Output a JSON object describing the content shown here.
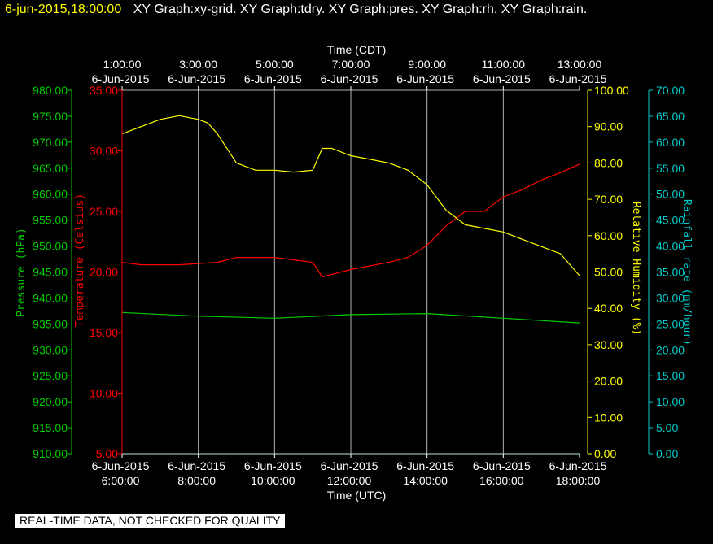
{
  "header": {
    "timestamp": "6-jun-2015,18:00:00",
    "titles": "XY Graph:xy-grid.  XY Graph:tdry.  XY Graph:pres.  XY Graph:rh.  XY Graph:rain."
  },
  "disclaimer": "REAL-TIME DATA, NOT CHECKED FOR QUALITY",
  "colors": {
    "background": "#000000",
    "grid": "#b4b4b4",
    "pressure": "#00cc00",
    "temperature": "#ff0000",
    "humidity": "#ffff00",
    "rain": "#00cccc",
    "axis_text": "#ffffff"
  },
  "chart_data": {
    "type": "line",
    "grid": true,
    "x_top": {
      "label": "Time (CDT)",
      "ticks": [
        {
          "time": "1:00:00",
          "date": "6-Jun-2015"
        },
        {
          "time": "3:00:00",
          "date": "6-Jun-2015"
        },
        {
          "time": "5:00:00",
          "date": "6-Jun-2015"
        },
        {
          "time": "7:00:00",
          "date": "6-Jun-2015"
        },
        {
          "time": "9:00:00",
          "date": "6-Jun-2015"
        },
        {
          "time": "11:00:00",
          "date": "6-Jun-2015"
        },
        {
          "time": "13:00:00",
          "date": "6-Jun-2015"
        }
      ]
    },
    "x_bottom": {
      "label": "Time (UTC)",
      "range": [
        "6:00:00",
        "18:00:00"
      ],
      "ticks": [
        {
          "date": "6-Jun-2015",
          "time": "6:00:00"
        },
        {
          "date": "6-Jun-2015",
          "time": "8:00:00"
        },
        {
          "date": "6-Jun-2015",
          "time": "10:00:00"
        },
        {
          "date": "6-Jun-2015",
          "time": "12:00:00"
        },
        {
          "date": "6-Jun-2015",
          "time": "14:00:00"
        },
        {
          "date": "6-Jun-2015",
          "time": "16:00:00"
        },
        {
          "date": "6-Jun-2015",
          "time": "18:00:00"
        }
      ]
    },
    "axes": {
      "pressure": {
        "label": "Pressure (hPa)",
        "ylim": [
          910,
          980
        ],
        "color": "#00cc00",
        "ticks": [
          "910.00",
          "915.00",
          "920.00",
          "925.00",
          "930.00",
          "935.00",
          "940.00",
          "945.00",
          "950.00",
          "955.00",
          "960.00",
          "965.00",
          "970.00",
          "975.00",
          "980.00"
        ]
      },
      "temperature": {
        "label": "Temperature (Celsius)",
        "ylim": [
          5,
          35
        ],
        "color": "#ff0000",
        "ticks": [
          "5.00",
          "10.00",
          "15.00",
          "20.00",
          "25.00",
          "30.00",
          "35.00"
        ]
      },
      "humidity": {
        "label": "Relative Humidity (%)",
        "ylim": [
          0,
          100
        ],
        "color": "#ffff00",
        "ticks": [
          "0.00",
          "10.00",
          "20.00",
          "30.00",
          "40.00",
          "50.00",
          "60.00",
          "70.00",
          "80.00",
          "90.00",
          "100.00"
        ]
      },
      "rain": {
        "label": "Rainfall rate (mm/hour)",
        "ylim": [
          0,
          70
        ],
        "color": "#00cccc",
        "ticks": [
          "0.00",
          "5.00",
          "10.00",
          "15.00",
          "20.00",
          "25.00",
          "30.00",
          "35.00",
          "40.00",
          "45.00",
          "50.00",
          "55.00",
          "60.00",
          "65.00",
          "70.00"
        ]
      }
    },
    "series": [
      {
        "name": "Temperature (Celsius)",
        "axis": "temperature",
        "color": "#ff0000",
        "x": [
          "6:00",
          "6:30",
          "7:00",
          "7:30",
          "8:00",
          "8:30",
          "9:00",
          "9:30",
          "10:00",
          "10:30",
          "11:00",
          "11:15",
          "11:30",
          "12:00",
          "12:30",
          "13:00",
          "13:30",
          "14:00",
          "14:30",
          "15:00",
          "15:30",
          "16:00",
          "16:30",
          "17:00",
          "17:30",
          "18:00"
        ],
        "values": [
          20.8,
          20.6,
          20.6,
          20.6,
          20.7,
          20.8,
          21.2,
          21.2,
          21.2,
          21.0,
          20.8,
          19.6,
          19.8,
          20.2,
          20.5,
          20.8,
          21.2,
          22.2,
          23.8,
          25.0,
          25.0,
          26.2,
          26.8,
          27.6,
          28.2,
          28.9
        ]
      },
      {
        "name": "Relative Humidity (%)",
        "axis": "humidity",
        "color": "#ffff00",
        "x": [
          "6:00",
          "6:30",
          "7:00",
          "7:30",
          "8:00",
          "8:15",
          "8:30",
          "9:00",
          "9:30",
          "10:00",
          "10:30",
          "11:00",
          "11:15",
          "11:30",
          "12:00",
          "12:30",
          "13:00",
          "13:30",
          "14:00",
          "14:30",
          "15:00",
          "15:30",
          "16:00",
          "16:30",
          "17:00",
          "17:30",
          "18:00"
        ],
        "values": [
          88,
          90,
          92,
          93,
          92,
          91,
          88,
          80,
          78,
          78,
          77.5,
          78,
          84,
          84,
          82,
          81,
          80,
          78,
          74,
          67,
          63,
          62,
          61,
          59,
          57,
          55,
          49
        ]
      },
      {
        "name": "Pressure (hPa)",
        "axis": "pressure",
        "color": "#00cc00",
        "x": [
          "6:00",
          "8:00",
          "10:00",
          "12:00",
          "14:00",
          "16:00",
          "18:00"
        ],
        "values": [
          937.2,
          936.5,
          936.1,
          936.8,
          937.0,
          936.1,
          935.2
        ]
      },
      {
        "name": "Rainfall rate (mm/hour)",
        "axis": "rain",
        "color": "#00cccc",
        "x": [
          "6:00",
          "18:00"
        ],
        "values": [
          0,
          0
        ]
      }
    ]
  }
}
